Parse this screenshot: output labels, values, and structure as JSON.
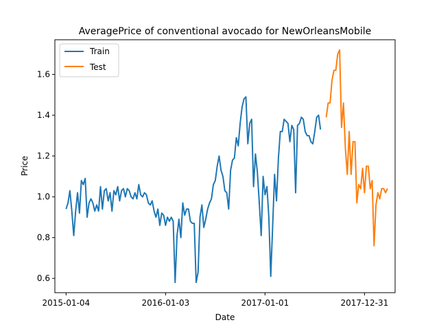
{
  "chart_data": {
    "type": "line",
    "title": "AveragePrice of conventional avocado for NewOrleansMobile",
    "xlabel": "Date",
    "ylabel": "Price",
    "x_tick_labels": [
      "2015-01-04",
      "2016-01-03",
      "2017-01-01",
      "2017-12-31"
    ],
    "y_tick_labels": [
      "0.6",
      "0.8",
      "1.0",
      "1.2",
      "1.4",
      "1.6"
    ],
    "xlim": [
      "2014-11-24",
      "2018-04-22"
    ],
    "ylim": [
      0.53,
      1.77
    ],
    "grid": false,
    "legend": "upper-left",
    "colors": {
      "Train": "#1f77b4",
      "Test": "#ff7f0e"
    },
    "series": [
      {
        "name": "Train",
        "start": "2015-01-04",
        "freq": "weekly",
        "values": [
          0.94,
          0.97,
          1.03,
          0.93,
          0.81,
          0.93,
          1.02,
          0.92,
          1.08,
          1.06,
          1.09,
          0.9,
          0.97,
          0.99,
          0.97,
          0.93,
          0.96,
          0.93,
          1.05,
          0.94,
          1.03,
          1.04,
          0.98,
          1.02,
          0.93,
          1.03,
          1.01,
          1.05,
          0.98,
          1.03,
          1.04,
          1.0,
          1.04,
          1.03,
          1.0,
          0.99,
          1.02,
          0.99,
          1.06,
          1.01,
          1.0,
          1.02,
          1.01,
          0.97,
          0.96,
          0.98,
          0.93,
          0.9,
          0.94,
          0.86,
          0.92,
          0.91,
          0.86,
          0.9,
          0.88,
          0.9,
          0.88,
          0.58,
          0.81,
          0.89,
          0.8,
          0.97,
          0.91,
          0.94,
          0.94,
          0.88,
          0.87,
          0.87,
          0.58,
          0.63,
          0.9,
          0.96,
          0.85,
          0.89,
          0.94,
          0.97,
          0.99,
          1.06,
          1.08,
          1.15,
          1.2,
          1.13,
          1.1,
          1.03,
          1.02,
          0.94,
          1.13,
          1.18,
          1.19,
          1.29,
          1.25,
          1.36,
          1.44,
          1.48,
          1.49,
          1.26,
          1.36,
          1.38,
          1.05,
          1.21,
          1.12,
          0.97,
          0.81,
          1.1,
          1.01,
          1.05,
          0.9,
          0.61,
          0.86,
          1.11,
          0.98,
          1.19,
          1.32,
          1.32,
          1.38,
          1.37,
          1.36,
          1.27,
          1.35,
          1.33,
          1.02,
          1.35,
          1.36,
          1.39,
          1.38,
          1.32,
          1.3,
          1.3,
          1.27,
          1.26,
          1.32,
          1.39,
          1.4,
          1.33
        ]
      },
      {
        "name": "Test",
        "start": "2017-08-13",
        "freq": "weekly",
        "values": [
          1.39,
          1.46,
          1.46,
          1.57,
          1.62,
          1.62,
          1.7,
          1.72,
          1.34,
          1.46,
          1.24,
          1.11,
          1.32,
          1.11,
          1.27,
          1.27,
          0.97,
          1.06,
          1.04,
          1.14,
          1.02,
          1.15,
          1.15,
          1.04,
          1.08,
          0.76,
          0.96,
          1.02,
          0.99,
          1.04,
          1.04,
          1.02,
          1.04
        ]
      }
    ]
  }
}
